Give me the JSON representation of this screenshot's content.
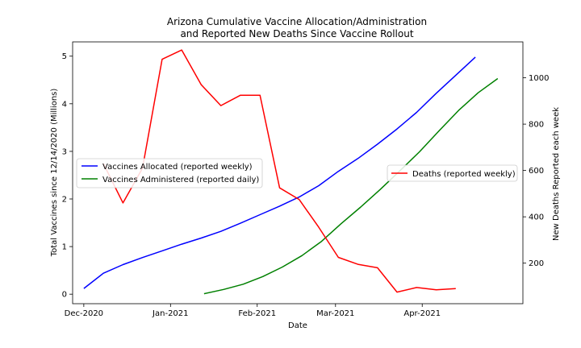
{
  "chart_data": {
    "type": "line",
    "title_line1": "Arizona Cumulative Vaccine Allocation/Administration",
    "title_line2": "and Reported New Deaths Since Vaccine Rollout",
    "xlabel": "Date",
    "ylabel_left": "Total Vaccines since 12/14/2020 (Millions)",
    "ylabel_right": "New Deaths Reported each week",
    "x_ticks": [
      {
        "date": "2020-12-01",
        "label": "Dec-2020"
      },
      {
        "date": "2021-01-01",
        "label": "Jan-2021"
      },
      {
        "date": "2021-02-01",
        "label": "Feb-2021"
      },
      {
        "date": "2021-03-01",
        "label": "Mar-2021"
      },
      {
        "date": "2021-04-01",
        "label": "Apr-2021"
      }
    ],
    "x_range": [
      "2020-11-27",
      "2021-05-07"
    ],
    "ylim_left": [
      -0.2,
      5.3
    ],
    "yticks_left": [
      0,
      1,
      2,
      3,
      4,
      5
    ],
    "ylim_right": [
      25,
      1155
    ],
    "yticks_right": [
      200,
      400,
      600,
      800,
      1000
    ],
    "legend_left": {
      "placement": "center-left"
    },
    "legend_right": {
      "placement": "center-right"
    },
    "series": [
      {
        "name": "Vaccines Allocated (reported weekly)",
        "axis": "left",
        "color": "#0000ff",
        "x": [
          "2020-12-01",
          "2020-12-08",
          "2020-12-15",
          "2020-12-22",
          "2020-12-29",
          "2021-01-05",
          "2021-01-12",
          "2021-01-19",
          "2021-01-26",
          "2021-02-02",
          "2021-02-09",
          "2021-02-16",
          "2021-02-23",
          "2021-03-02",
          "2021-03-09",
          "2021-03-16",
          "2021-03-23",
          "2021-03-30",
          "2021-04-06",
          "2021-04-13",
          "2021-04-20"
        ],
        "y": [
          0.12,
          0.44,
          0.62,
          0.77,
          0.91,
          1.05,
          1.18,
          1.32,
          1.49,
          1.67,
          1.85,
          2.04,
          2.28,
          2.58,
          2.85,
          3.15,
          3.47,
          3.82,
          4.22,
          4.6,
          4.98
        ]
      },
      {
        "name": "Vaccines Administered (reported daily)",
        "axis": "left",
        "color": "#008000",
        "x": [
          "2021-01-13",
          "2021-01-20",
          "2021-01-27",
          "2021-02-03",
          "2021-02-10",
          "2021-02-17",
          "2021-02-24",
          "2021-03-03",
          "2021-03-10",
          "2021-03-17",
          "2021-03-24",
          "2021-03-31",
          "2021-04-07",
          "2021-04-14",
          "2021-04-21",
          "2021-04-28"
        ],
        "y": [
          0.01,
          0.1,
          0.21,
          0.37,
          0.57,
          0.81,
          1.11,
          1.48,
          1.83,
          2.2,
          2.59,
          2.99,
          3.43,
          3.86,
          4.23,
          4.53
        ]
      },
      {
        "name": "Deaths (reported weekly)",
        "axis": "right",
        "color": "#ff0000",
        "x": [
          "2020-12-08",
          "2020-12-15",
          "2020-12-22",
          "2020-12-29",
          "2021-01-05",
          "2021-01-12",
          "2021-01-19",
          "2021-01-26",
          "2021-02-02",
          "2021-02-09",
          "2021-02-16",
          "2021-02-23",
          "2021-03-02",
          "2021-03-09",
          "2021-03-16",
          "2021-03-23",
          "2021-03-30",
          "2021-04-06",
          "2021-04-13"
        ],
        "y": [
          630,
          460,
          610,
          1080,
          1120,
          970,
          880,
          925,
          925,
          525,
          475,
          355,
          225,
          195,
          180,
          75,
          95,
          85,
          90
        ]
      }
    ]
  }
}
